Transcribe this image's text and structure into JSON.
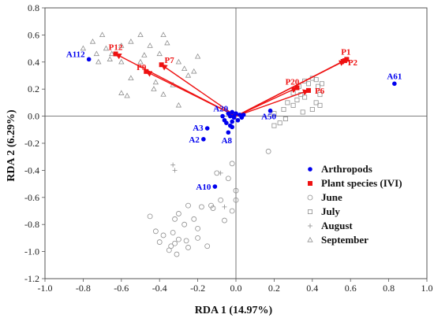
{
  "chart_data": {
    "type": "scatter",
    "title": "",
    "xlabel": "RDA 1 (14.97%)",
    "ylabel": "RDA 2 (6.29%)",
    "xlim": [
      -1.0,
      1.0
    ],
    "ylim": [
      -1.2,
      0.8
    ],
    "xticks": [
      "-1.0",
      "-0.8",
      "-0.6",
      "-0.4",
      "-0.2",
      "0.0",
      "0.2",
      "0.4",
      "0.6",
      "0.8",
      "1.0"
    ],
    "yticks": [
      "0.8",
      "0.6",
      "0.4",
      "0.2",
      "0.0",
      "-0.2",
      "-0.4",
      "-0.6",
      "-0.8",
      "-1.0",
      "-1.2"
    ],
    "grid": false,
    "zero_lines": true,
    "legend_position": "bottom-right",
    "legend": [
      {
        "label": "Arthropods",
        "marker": "filled-circle",
        "color": "#0000ee"
      },
      {
        "label": "Plant species (IVI)",
        "marker": "filled-square",
        "color": "#ee1111"
      },
      {
        "label": "June",
        "marker": "open-circle",
        "color": "#999999"
      },
      {
        "label": "July",
        "marker": "open-square",
        "color": "#999999"
      },
      {
        "label": "August",
        "marker": "plus",
        "color": "#999999"
      },
      {
        "label": "September",
        "marker": "open-triangle",
        "color": "#999999"
      }
    ],
    "series": [
      {
        "name": "Arthropods",
        "labeled_points": [
          {
            "label": "A112",
            "x": -0.77,
            "y": 0.42
          },
          {
            "label": "A61",
            "x": 0.83,
            "y": 0.24
          },
          {
            "label": "A20",
            "x": -0.02,
            "y": 0.03
          },
          {
            "label": "A3",
            "x": -0.15,
            "y": -0.09
          },
          {
            "label": "A2",
            "x": -0.17,
            "y": -0.17
          },
          {
            "label": "A8",
            "x": -0.04,
            "y": -0.12
          },
          {
            "label": "A50",
            "x": 0.18,
            "y": 0.04
          },
          {
            "label": "A10",
            "x": -0.11,
            "y": -0.52
          }
        ],
        "points": [
          {
            "x": 0.0,
            "y": 0.02
          },
          {
            "x": 0.02,
            "y": 0.01
          },
          {
            "x": -0.01,
            "y": -0.01
          },
          {
            "x": -0.03,
            "y": 0.0
          },
          {
            "x": -0.02,
            "y": -0.04
          },
          {
            "x": -0.05,
            "y": -0.05
          },
          {
            "x": -0.03,
            "y": -0.07
          },
          {
            "x": -0.06,
            "y": -0.03
          },
          {
            "x": 0.01,
            "y": -0.03
          },
          {
            "x": -0.04,
            "y": 0.02
          },
          {
            "x": 0.03,
            "y": -0.01
          },
          {
            "x": -0.01,
            "y": 0.0
          },
          {
            "x": -0.07,
            "y": 0.0
          },
          {
            "x": 0.04,
            "y": 0.01
          },
          {
            "x": -0.02,
            "y": -0.08
          }
        ]
      },
      {
        "name": "Plant species (IVI)",
        "vectors": [
          {
            "label": "P12",
            "x": -0.63,
            "y": 0.46
          },
          {
            "label": "P7",
            "x": -0.39,
            "y": 0.38
          },
          {
            "label": "P9",
            "x": -0.47,
            "y": 0.33
          },
          {
            "label": "P1",
            "x": 0.58,
            "y": 0.42
          },
          {
            "label": "P2",
            "x": 0.57,
            "y": 0.41
          },
          {
            "label": "P20",
            "x": 0.32,
            "y": 0.21
          },
          {
            "label": "P6",
            "x": 0.38,
            "y": 0.19
          }
        ]
      },
      {
        "name": "June",
        "points": [
          {
            "x": -0.1,
            "y": -0.42
          },
          {
            "x": -0.04,
            "y": -0.46
          },
          {
            "x": 0.0,
            "y": -0.55
          },
          {
            "x": 0.0,
            "y": -0.62
          },
          {
            "x": -0.08,
            "y": -0.62
          },
          {
            "x": -0.13,
            "y": -0.66
          },
          {
            "x": -0.18,
            "y": -0.67
          },
          {
            "x": -0.25,
            "y": -0.66
          },
          {
            "x": -0.3,
            "y": -0.72
          },
          {
            "x": -0.32,
            "y": -0.76
          },
          {
            "x": -0.22,
            "y": -0.76
          },
          {
            "x": -0.2,
            "y": -0.83
          },
          {
            "x": -0.27,
            "y": -0.8
          },
          {
            "x": -0.33,
            "y": -0.86
          },
          {
            "x": -0.3,
            "y": -0.91
          },
          {
            "x": -0.26,
            "y": -0.92
          },
          {
            "x": -0.34,
            "y": -0.96
          },
          {
            "x": -0.31,
            "y": -1.02
          },
          {
            "x": -0.38,
            "y": -0.88
          },
          {
            "x": -0.4,
            "y": -0.93
          },
          {
            "x": -0.35,
            "y": -0.99
          },
          {
            "x": -0.25,
            "y": -0.97
          },
          {
            "x": -0.2,
            "y": -0.9
          },
          {
            "x": -0.15,
            "y": -0.96
          },
          {
            "x": -0.12,
            "y": -0.68
          },
          {
            "x": -0.02,
            "y": -0.7
          },
          {
            "x": -0.06,
            "y": -0.77
          },
          {
            "x": -0.42,
            "y": -0.85
          },
          {
            "x": -0.45,
            "y": -0.74
          },
          {
            "x": -0.32,
            "y": -0.94
          },
          {
            "x": 0.17,
            "y": -0.26
          },
          {
            "x": -0.02,
            "y": -0.35
          }
        ]
      },
      {
        "name": "July",
        "points": [
          {
            "x": 0.2,
            "y": 0.02
          },
          {
            "x": 0.25,
            "y": 0.05
          },
          {
            "x": 0.27,
            "y": 0.1
          },
          {
            "x": 0.3,
            "y": 0.17
          },
          {
            "x": 0.33,
            "y": 0.22
          },
          {
            "x": 0.36,
            "y": 0.26
          },
          {
            "x": 0.4,
            "y": 0.28
          },
          {
            "x": 0.43,
            "y": 0.22
          },
          {
            "x": 0.36,
            "y": 0.14
          },
          {
            "x": 0.42,
            "y": 0.1
          },
          {
            "x": 0.44,
            "y": 0.16
          },
          {
            "x": 0.38,
            "y": 0.24
          },
          {
            "x": 0.32,
            "y": 0.12
          },
          {
            "x": 0.3,
            "y": 0.08
          },
          {
            "x": 0.35,
            "y": 0.03
          },
          {
            "x": 0.4,
            "y": 0.05
          },
          {
            "x": 0.44,
            "y": 0.08
          },
          {
            "x": 0.23,
            "y": -0.05
          },
          {
            "x": 0.2,
            "y": -0.07
          },
          {
            "x": 0.26,
            "y": -0.02
          },
          {
            "x": 0.45,
            "y": 0.24
          },
          {
            "x": 0.42,
            "y": 0.27
          },
          {
            "x": 0.38,
            "y": 0.19
          },
          {
            "x": 0.34,
            "y": 0.16
          }
        ]
      },
      {
        "name": "August",
        "points": [
          {
            "x": -0.33,
            "y": -0.36
          },
          {
            "x": -0.32,
            "y": -0.4
          },
          {
            "x": -0.06,
            "y": -0.67
          },
          {
            "x": -0.08,
            "y": -0.42
          }
        ]
      },
      {
        "name": "September",
        "points": [
          {
            "x": -0.8,
            "y": 0.5
          },
          {
            "x": -0.75,
            "y": 0.55
          },
          {
            "x": -0.7,
            "y": 0.6
          },
          {
            "x": -0.73,
            "y": 0.46
          },
          {
            "x": -0.68,
            "y": 0.5
          },
          {
            "x": -0.66,
            "y": 0.42
          },
          {
            "x": -0.72,
            "y": 0.4
          },
          {
            "x": -0.6,
            "y": 0.52
          },
          {
            "x": -0.55,
            "y": 0.55
          },
          {
            "x": -0.5,
            "y": 0.6
          },
          {
            "x": -0.45,
            "y": 0.52
          },
          {
            "x": -0.38,
            "y": 0.6
          },
          {
            "x": -0.36,
            "y": 0.54
          },
          {
            "x": -0.4,
            "y": 0.46
          },
          {
            "x": -0.48,
            "y": 0.45
          },
          {
            "x": -0.6,
            "y": 0.4
          },
          {
            "x": -0.65,
            "y": 0.46
          },
          {
            "x": -0.55,
            "y": 0.28
          },
          {
            "x": -0.6,
            "y": 0.17
          },
          {
            "x": -0.57,
            "y": 0.15
          },
          {
            "x": -0.43,
            "y": 0.2
          },
          {
            "x": -0.38,
            "y": 0.16
          },
          {
            "x": -0.33,
            "y": 0.23
          },
          {
            "x": -0.25,
            "y": 0.3
          },
          {
            "x": -0.2,
            "y": 0.44
          },
          {
            "x": -0.5,
            "y": 0.4
          },
          {
            "x": -0.3,
            "y": 0.4
          },
          {
            "x": -0.27,
            "y": 0.35
          },
          {
            "x": -0.22,
            "y": 0.33
          },
          {
            "x": -0.42,
            "y": 0.25
          },
          {
            "x": -0.3,
            "y": 0.08
          }
        ]
      }
    ]
  }
}
